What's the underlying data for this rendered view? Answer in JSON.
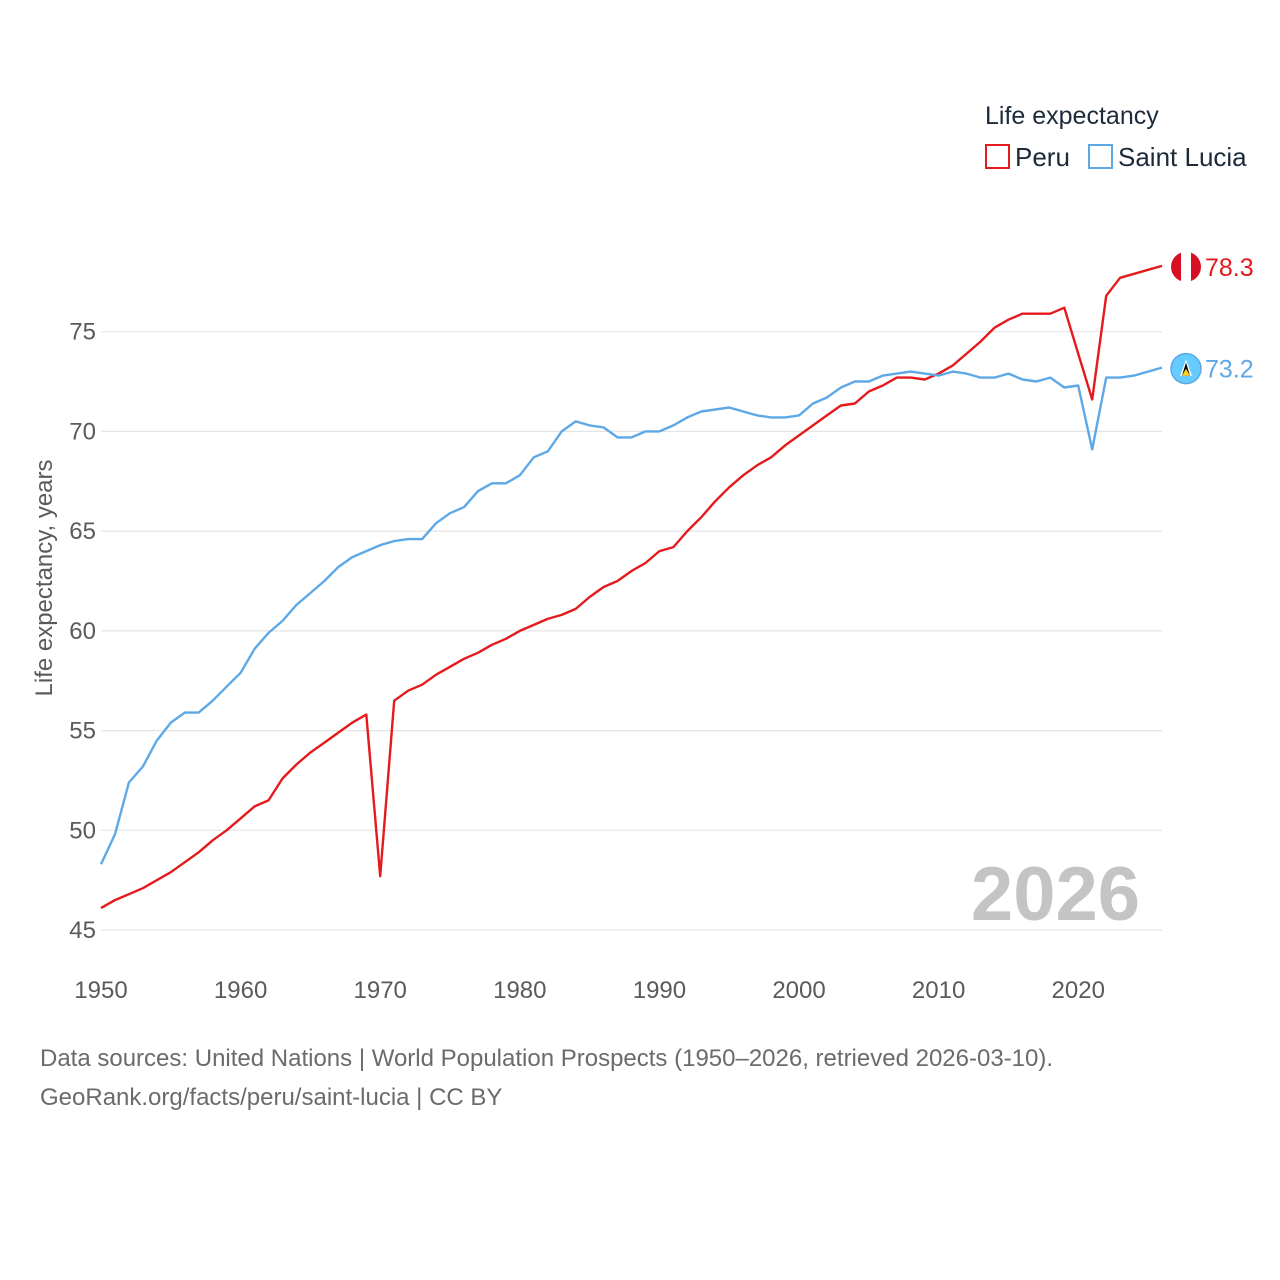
{
  "chart_data": {
    "type": "line",
    "title": "",
    "legend_title": "Life expectancy",
    "ylabel": "Life expectancy, years",
    "xlabel": "",
    "xlim": [
      1950,
      2026
    ],
    "ylim": [
      44,
      81
    ],
    "x_ticks": [
      1950,
      1960,
      1970,
      1980,
      1990,
      2000,
      2010,
      2020
    ],
    "y_ticks": [
      45,
      50,
      55,
      60,
      65,
      70,
      75
    ],
    "current_year": "2026",
    "x": [
      1950,
      1951,
      1952,
      1953,
      1954,
      1955,
      1956,
      1957,
      1958,
      1959,
      1960,
      1961,
      1962,
      1963,
      1964,
      1965,
      1966,
      1967,
      1968,
      1969,
      1970,
      1971,
      1972,
      1973,
      1974,
      1975,
      1976,
      1977,
      1978,
      1979,
      1980,
      1981,
      1982,
      1983,
      1984,
      1985,
      1986,
      1987,
      1988,
      1989,
      1990,
      1991,
      1992,
      1993,
      1994,
      1995,
      1996,
      1997,
      1998,
      1999,
      2000,
      2001,
      2002,
      2003,
      2004,
      2005,
      2006,
      2007,
      2008,
      2009,
      2010,
      2011,
      2012,
      2013,
      2014,
      2015,
      2016,
      2017,
      2018,
      2019,
      2020,
      2021,
      2022,
      2023,
      2024,
      2025,
      2026
    ],
    "series": [
      {
        "name": "Peru",
        "color": "#e41a1c",
        "end_label": "78.3",
        "values": [
          46.1,
          46.5,
          46.8,
          47.1,
          47.5,
          47.9,
          48.4,
          48.9,
          49.5,
          50.0,
          50.6,
          51.2,
          51.5,
          52.6,
          53.3,
          53.9,
          54.4,
          54.9,
          55.4,
          55.8,
          47.7,
          56.5,
          57.0,
          57.3,
          57.8,
          58.2,
          58.6,
          58.9,
          59.3,
          59.6,
          60.0,
          60.3,
          60.6,
          60.8,
          61.1,
          61.7,
          62.2,
          62.5,
          63.0,
          63.4,
          64.0,
          64.2,
          65.0,
          65.7,
          66.5,
          67.2,
          67.8,
          68.3,
          68.7,
          69.3,
          69.8,
          70.3,
          70.8,
          71.3,
          71.4,
          72.0,
          72.3,
          72.7,
          72.7,
          72.6,
          72.9,
          73.3,
          73.9,
          74.5,
          75.2,
          75.6,
          75.9,
          75.9,
          75.9,
          76.2,
          73.9,
          71.6,
          76.8,
          77.7,
          77.9,
          78.1,
          78.3
        ]
      },
      {
        "name": "Saint Lucia",
        "color": "#5ea8e6",
        "end_label": "73.2",
        "values": [
          48.3,
          49.8,
          52.4,
          53.2,
          54.5,
          55.4,
          55.9,
          55.9,
          56.5,
          57.2,
          57.9,
          59.1,
          59.9,
          60.5,
          61.3,
          61.9,
          62.5,
          63.2,
          63.7,
          64.0,
          64.3,
          64.5,
          64.6,
          64.6,
          65.4,
          65.9,
          66.2,
          67.0,
          67.4,
          67.4,
          67.8,
          68.7,
          69.0,
          70.0,
          70.5,
          70.3,
          70.2,
          69.7,
          69.7,
          70.0,
          70.0,
          70.3,
          70.7,
          71.0,
          71.1,
          71.2,
          71.0,
          70.8,
          70.7,
          70.7,
          70.8,
          71.4,
          71.7,
          72.2,
          72.5,
          72.5,
          72.8,
          72.9,
          73.0,
          72.9,
          72.8,
          73.0,
          72.9,
          72.7,
          72.7,
          72.9,
          72.6,
          72.5,
          72.7,
          72.2,
          72.3,
          69.1,
          72.7,
          72.7,
          72.8,
          73.0,
          73.2
        ]
      }
    ]
  },
  "source_line1": "Data sources: United Nations | World Population Prospects (1950–2026, retrieved 2026-03-10).",
  "source_line2": "GeoRank.org/facts/peru/saint-lucia | CC BY"
}
